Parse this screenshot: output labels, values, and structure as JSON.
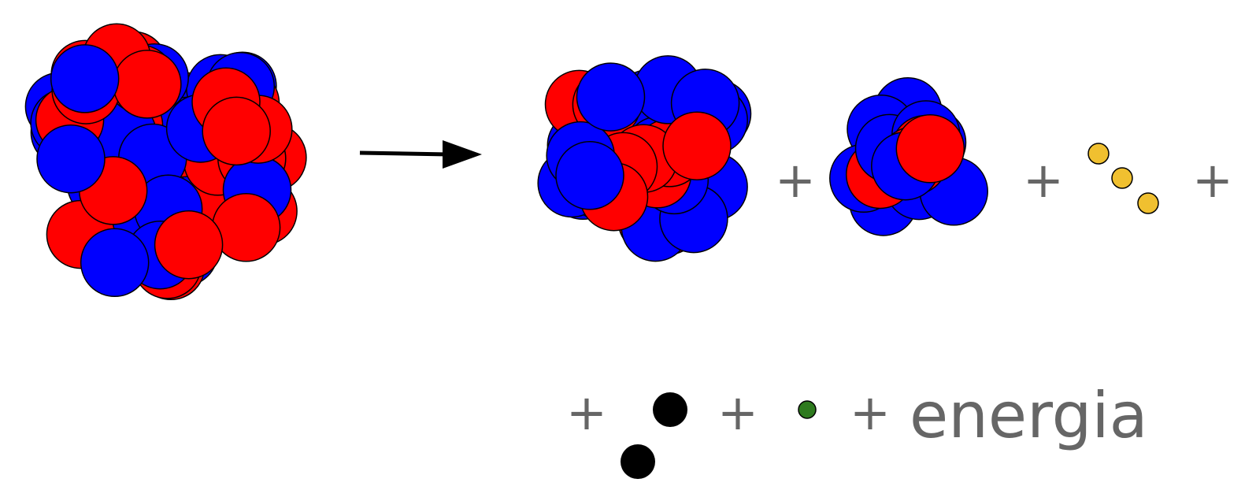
{
  "equation": {
    "plus_signs": [
      "+",
      "+",
      "+",
      "+",
      "+",
      "+"
    ],
    "energy": "energia"
  }
}
